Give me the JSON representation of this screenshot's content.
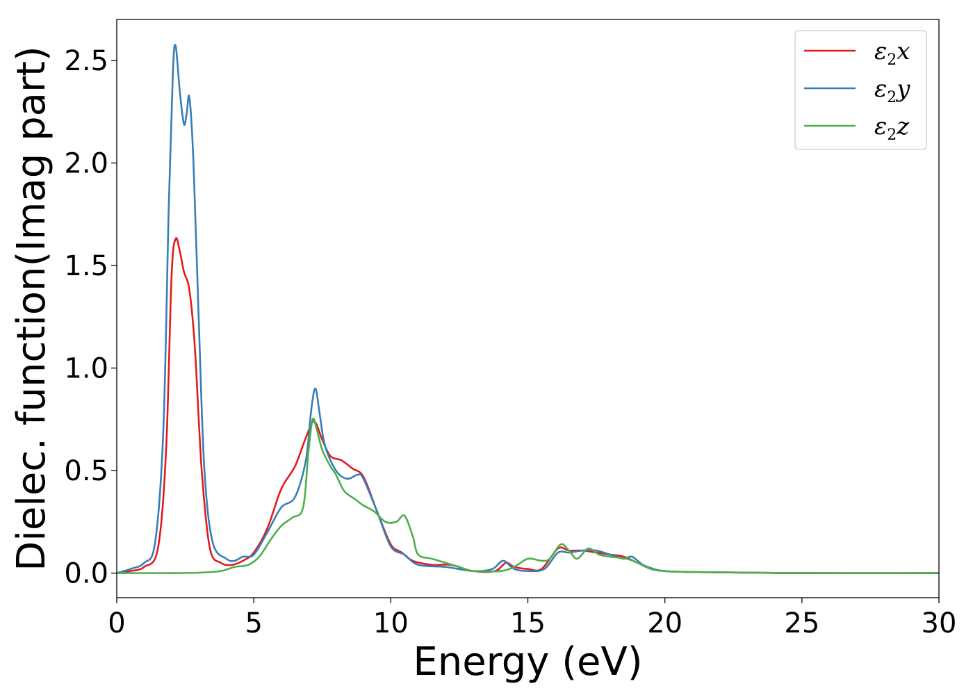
{
  "chart_data": {
    "type": "line",
    "xlabel": "Energy (eV)",
    "ylabel": "Dielec. function(Imag part)",
    "xlim": [
      0,
      30
    ],
    "ylim": [
      -0.12,
      2.7
    ],
    "x_ticks": [
      0,
      5,
      10,
      15,
      20,
      25,
      30
    ],
    "y_ticks": [
      0.0,
      0.5,
      1.0,
      1.5,
      2.0,
      2.5
    ],
    "x_tick_labels": [
      "0",
      "5",
      "10",
      "15",
      "20",
      "25",
      "30"
    ],
    "y_tick_labels": [
      "0.0",
      "0.5",
      "1.0",
      "1.5",
      "2.0",
      "2.5"
    ],
    "grid": false,
    "legend_position": "top-right",
    "series": [
      {
        "name": "ε₂x",
        "legend_base": "ε",
        "legend_sub": "2",
        "legend_var": "x",
        "color": "#e41a1c",
        "points": [
          [
            0,
            0
          ],
          [
            0.5,
            0.01
          ],
          [
            1.0,
            0.03
          ],
          [
            1.5,
            0.12
          ],
          [
            1.8,
            0.6
          ],
          [
            2.0,
            1.45
          ],
          [
            2.15,
            1.63
          ],
          [
            2.3,
            1.57
          ],
          [
            2.45,
            1.47
          ],
          [
            2.65,
            1.38
          ],
          [
            2.85,
            1.1
          ],
          [
            3.1,
            0.5
          ],
          [
            3.4,
            0.12
          ],
          [
            3.8,
            0.05
          ],
          [
            4.2,
            0.04
          ],
          [
            4.6,
            0.06
          ],
          [
            5.0,
            0.1
          ],
          [
            5.5,
            0.22
          ],
          [
            6.0,
            0.41
          ],
          [
            6.5,
            0.52
          ],
          [
            6.9,
            0.66
          ],
          [
            7.2,
            0.74
          ],
          [
            7.5,
            0.65
          ],
          [
            7.8,
            0.57
          ],
          [
            8.2,
            0.55
          ],
          [
            8.6,
            0.51
          ],
          [
            9.0,
            0.47
          ],
          [
            9.5,
            0.3
          ],
          [
            10.0,
            0.14
          ],
          [
            10.4,
            0.1
          ],
          [
            10.8,
            0.06
          ],
          [
            11.5,
            0.04
          ],
          [
            12.2,
            0.04
          ],
          [
            13.0,
            0.01
          ],
          [
            13.8,
            0.01
          ],
          [
            14.2,
            0.05
          ],
          [
            14.5,
            0.03
          ],
          [
            15.0,
            0.02
          ],
          [
            15.5,
            0.02
          ],
          [
            16.1,
            0.12
          ],
          [
            16.5,
            0.11
          ],
          [
            17.0,
            0.11
          ],
          [
            17.5,
            0.1
          ],
          [
            18.0,
            0.09
          ],
          [
            18.5,
            0.08
          ],
          [
            19.0,
            0.05
          ],
          [
            19.5,
            0.02
          ],
          [
            20.0,
            0.01
          ],
          [
            21,
            0.005
          ],
          [
            25,
            0
          ],
          [
            30,
            0
          ]
        ]
      },
      {
        "name": "ε₂y",
        "legend_base": "ε",
        "legend_sub": "2",
        "legend_var": "y",
        "color": "#377eb8",
        "points": [
          [
            0,
            0
          ],
          [
            0.5,
            0.02
          ],
          [
            1.0,
            0.05
          ],
          [
            1.4,
            0.15
          ],
          [
            1.7,
            0.7
          ],
          [
            1.9,
            1.8
          ],
          [
            2.05,
            2.45
          ],
          [
            2.15,
            2.57
          ],
          [
            2.3,
            2.35
          ],
          [
            2.45,
            2.19
          ],
          [
            2.55,
            2.24
          ],
          [
            2.65,
            2.32
          ],
          [
            2.8,
            2.0
          ],
          [
            3.0,
            1.2
          ],
          [
            3.2,
            0.5
          ],
          [
            3.5,
            0.15
          ],
          [
            4.0,
            0.07
          ],
          [
            4.3,
            0.06
          ],
          [
            4.6,
            0.08
          ],
          [
            5.0,
            0.09
          ],
          [
            5.5,
            0.2
          ],
          [
            6.0,
            0.32
          ],
          [
            6.5,
            0.37
          ],
          [
            6.9,
            0.55
          ],
          [
            7.1,
            0.8
          ],
          [
            7.25,
            0.9
          ],
          [
            7.4,
            0.78
          ],
          [
            7.6,
            0.62
          ],
          [
            8.0,
            0.5
          ],
          [
            8.4,
            0.46
          ],
          [
            8.8,
            0.48
          ],
          [
            9.0,
            0.46
          ],
          [
            9.5,
            0.3
          ],
          [
            10.0,
            0.13
          ],
          [
            10.5,
            0.09
          ],
          [
            11.0,
            0.04
          ],
          [
            12.0,
            0.03
          ],
          [
            13.0,
            0.01
          ],
          [
            13.7,
            0.02
          ],
          [
            14.1,
            0.06
          ],
          [
            14.5,
            0.02
          ],
          [
            15.0,
            0.01
          ],
          [
            15.6,
            0.02
          ],
          [
            16.1,
            0.1
          ],
          [
            16.5,
            0.1
          ],
          [
            17.0,
            0.11
          ],
          [
            17.5,
            0.11
          ],
          [
            18.0,
            0.09
          ],
          [
            18.5,
            0.07
          ],
          [
            18.8,
            0.08
          ],
          [
            19.2,
            0.04
          ],
          [
            19.6,
            0.02
          ],
          [
            20.0,
            0.01
          ],
          [
            21,
            0.005
          ],
          [
            25,
            0
          ],
          [
            30,
            0
          ]
        ]
      },
      {
        "name": "ε₂z",
        "legend_base": "ε",
        "legend_sub": "2",
        "legend_var": "z",
        "color": "#4daf4a",
        "points": [
          [
            0,
            0
          ],
          [
            2,
            0
          ],
          [
            3,
            0.002
          ],
          [
            3.8,
            0.01
          ],
          [
            4.3,
            0.03
          ],
          [
            4.8,
            0.04
          ],
          [
            5.2,
            0.08
          ],
          [
            5.6,
            0.16
          ],
          [
            6.0,
            0.23
          ],
          [
            6.4,
            0.27
          ],
          [
            6.8,
            0.32
          ],
          [
            7.0,
            0.6
          ],
          [
            7.15,
            0.75
          ],
          [
            7.3,
            0.7
          ],
          [
            7.5,
            0.6
          ],
          [
            7.8,
            0.52
          ],
          [
            8.0,
            0.48
          ],
          [
            8.3,
            0.4
          ],
          [
            8.7,
            0.36
          ],
          [
            9.0,
            0.33
          ],
          [
            9.4,
            0.3
          ],
          [
            9.8,
            0.25
          ],
          [
            10.2,
            0.25
          ],
          [
            10.5,
            0.28
          ],
          [
            10.8,
            0.18
          ],
          [
            11.0,
            0.09
          ],
          [
            11.5,
            0.07
          ],
          [
            12.0,
            0.05
          ],
          [
            12.5,
            0.03
          ],
          [
            13.0,
            0.01
          ],
          [
            14.0,
            0.01
          ],
          [
            14.5,
            0.03
          ],
          [
            15.0,
            0.07
          ],
          [
            15.5,
            0.06
          ],
          [
            15.8,
            0.07
          ],
          [
            16.2,
            0.14
          ],
          [
            16.5,
            0.11
          ],
          [
            16.8,
            0.07
          ],
          [
            17.2,
            0.12
          ],
          [
            17.6,
            0.09
          ],
          [
            18.0,
            0.08
          ],
          [
            18.6,
            0.07
          ],
          [
            19.0,
            0.05
          ],
          [
            19.5,
            0.02
          ],
          [
            20.0,
            0.01
          ],
          [
            21,
            0.005
          ],
          [
            25,
            0
          ],
          [
            30,
            0
          ]
        ]
      }
    ]
  }
}
